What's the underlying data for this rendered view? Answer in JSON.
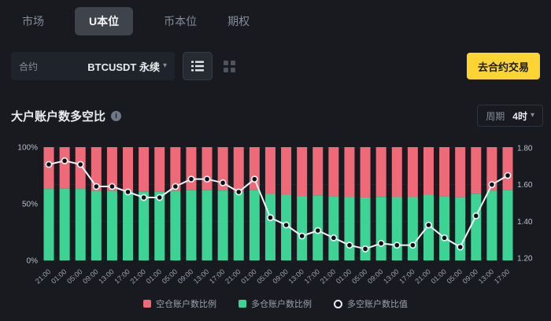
{
  "tabs": {
    "items": [
      {
        "label": "市场",
        "active": false
      },
      {
        "label": "U本位",
        "active": true
      },
      {
        "label": "币本位",
        "active": false
      },
      {
        "label": "期权",
        "active": false
      }
    ]
  },
  "controls": {
    "contract_label": "合约",
    "contract_value": "BTCUSDT 永续",
    "caret": "▾",
    "trade_button_label": "去合约交易"
  },
  "section": {
    "title": "大户账户数多空比",
    "info_icon_glyph": "i",
    "period_label": "周期",
    "period_value": "4时"
  },
  "legend": {
    "items": [
      {
        "label": "空仓账户数比例",
        "marker": "square",
        "color": "#ef6a78"
      },
      {
        "label": "多仓账户数比例",
        "marker": "square",
        "color": "#3cd394"
      },
      {
        "label": "多空账户数比值",
        "marker": "ring",
        "color": "#e8ecf0"
      }
    ]
  },
  "chart_data": {
    "type": "bar",
    "stacked": true,
    "title": "大户账户数多空比",
    "categories": [
      "21:00",
      "01:00",
      "05:00",
      "09:00",
      "13:00",
      "17:00",
      "21:00",
      "01:00",
      "05:00",
      "09:00",
      "13:00",
      "17:00",
      "21:00",
      "01:00",
      "05:00",
      "09:00",
      "13:00",
      "17:00",
      "21:00",
      "01:00",
      "05:00",
      "09:00",
      "13:00",
      "17:00",
      "21:00",
      "01:00",
      "05:00",
      "09:00",
      "13:00",
      "17:00"
    ],
    "series": [
      {
        "name": "空仓账户数比例",
        "type": "bar",
        "axis": "left",
        "color": "#ef6a78",
        "values": [
          36.9,
          36.6,
          36.9,
          38.6,
          38.6,
          39.1,
          39.5,
          39.5,
          38.6,
          38.0,
          38.0,
          38.3,
          39.1,
          38.0,
          41.3,
          42.0,
          43.1,
          42.6,
          43.3,
          44.1,
          44.4,
          43.9,
          44.1,
          44.1,
          42.0,
          43.3,
          44.2,
          41.2,
          38.5,
          37.7
        ]
      },
      {
        "name": "多仓账户数比例",
        "type": "bar",
        "axis": "left",
        "color": "#3cd394",
        "values": [
          63.1,
          63.4,
          63.1,
          61.4,
          61.4,
          60.9,
          60.5,
          60.5,
          61.4,
          62.0,
          62.0,
          61.7,
          60.9,
          62.0,
          58.7,
          58.0,
          56.9,
          57.4,
          56.7,
          55.9,
          55.6,
          56.1,
          55.9,
          55.9,
          58.0,
          56.7,
          55.8,
          58.8,
          61.5,
          62.3
        ]
      },
      {
        "name": "多空账户数比值",
        "type": "line",
        "axis": "right",
        "color": "#f2f4f6",
        "values": [
          1.71,
          1.73,
          1.71,
          1.59,
          1.59,
          1.56,
          1.53,
          1.53,
          1.59,
          1.63,
          1.63,
          1.61,
          1.56,
          1.63,
          1.42,
          1.38,
          1.32,
          1.35,
          1.31,
          1.27,
          1.25,
          1.28,
          1.27,
          1.27,
          1.38,
          1.31,
          1.26,
          1.43,
          1.6,
          1.65
        ]
      }
    ],
    "left_axis": {
      "ticks": [
        "100%",
        "50%",
        "0%"
      ],
      "range": [
        0,
        100
      ],
      "unit": "%"
    },
    "right_axis": {
      "ticks": [
        "1.80",
        "1.60",
        "1.40",
        "1.20"
      ],
      "range": [
        1.2,
        1.8
      ]
    },
    "grid": false,
    "legend_position": "bottom"
  }
}
